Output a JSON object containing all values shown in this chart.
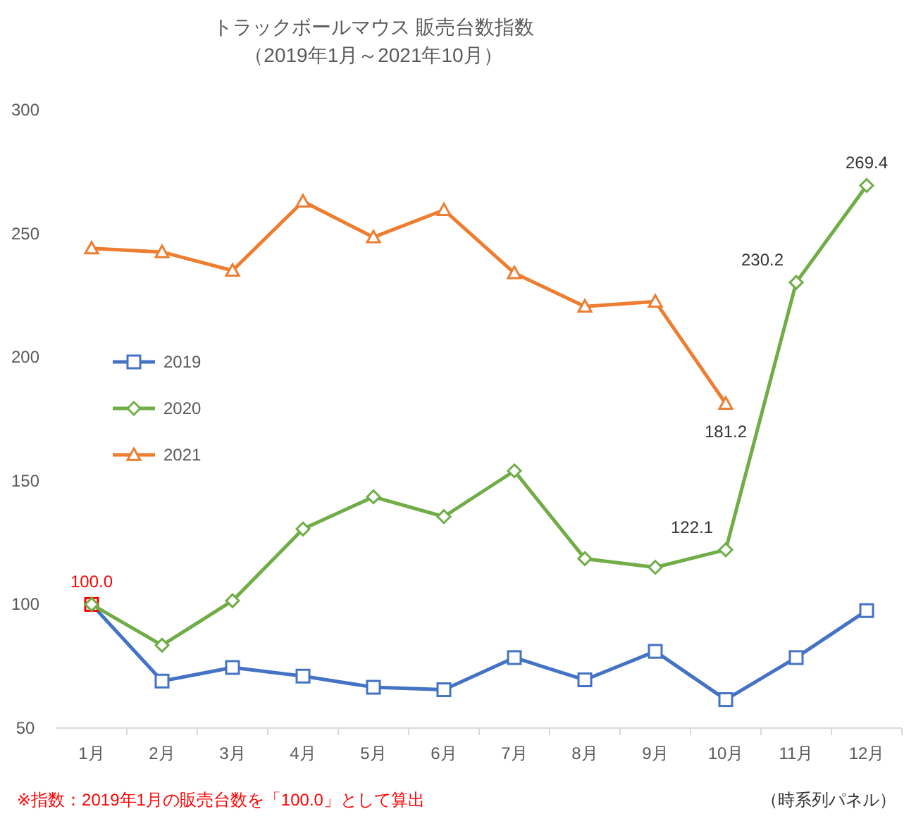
{
  "chart_data": {
    "type": "line",
    "title": "トラックボールマウス 販売台数指数",
    "subtitle": "（2019年1月～2021年10月）",
    "categories": [
      "1月",
      "2月",
      "3月",
      "4月",
      "5月",
      "6月",
      "7月",
      "8月",
      "9月",
      "10月",
      "11月",
      "12月"
    ],
    "ylim": [
      50,
      300
    ],
    "yticks": [
      50,
      100,
      150,
      200,
      250,
      300
    ],
    "grid": false,
    "legend": "left",
    "line_style": "solid",
    "series": [
      {
        "name": "2019",
        "color": "#4472c4",
        "marker": "square",
        "values": [
          100.0,
          69,
          74.5,
          71,
          66.5,
          65.5,
          78.5,
          69.5,
          81,
          61.5,
          78.5,
          97.5
        ],
        "colors": [
          "#ff0000",
          "#4472c4",
          "#4472c4",
          "#4472c4",
          "#4472c4",
          "#4472c4",
          "#4472c4",
          "#4472c4",
          "#4472c4",
          "#4472c4",
          "#4472c4",
          "#4472c4"
        ],
        "value_labels": [
          "100.0",
          null,
          null,
          null,
          null,
          null,
          null,
          null,
          null,
          null,
          null,
          null
        ]
      },
      {
        "name": "2020",
        "color": "#70ad47",
        "marker": "diamond",
        "values": [
          100.0,
          83.5,
          101.5,
          130.5,
          143.5,
          135.5,
          154,
          118.5,
          115,
          122.1,
          230.2,
          269.4
        ],
        "value_labels": [
          null,
          null,
          null,
          null,
          null,
          null,
          null,
          null,
          null,
          "122.1",
          "230.2",
          "269.4"
        ]
      },
      {
        "name": "2021",
        "color": "#ed7d31",
        "marker": "triangle",
        "values": [
          244,
          242.5,
          235,
          263,
          248.5,
          259.5,
          234,
          220.5,
          222.5,
          181.2,
          null,
          null
        ],
        "value_labels": [
          null,
          null,
          null,
          null,
          null,
          null,
          null,
          null,
          null,
          "181.2",
          null,
          null
        ]
      }
    ],
    "annotations": [
      "※指数：2019年1月の販売台数を「100.0」として算出",
      "（時系列パネル）"
    ]
  }
}
